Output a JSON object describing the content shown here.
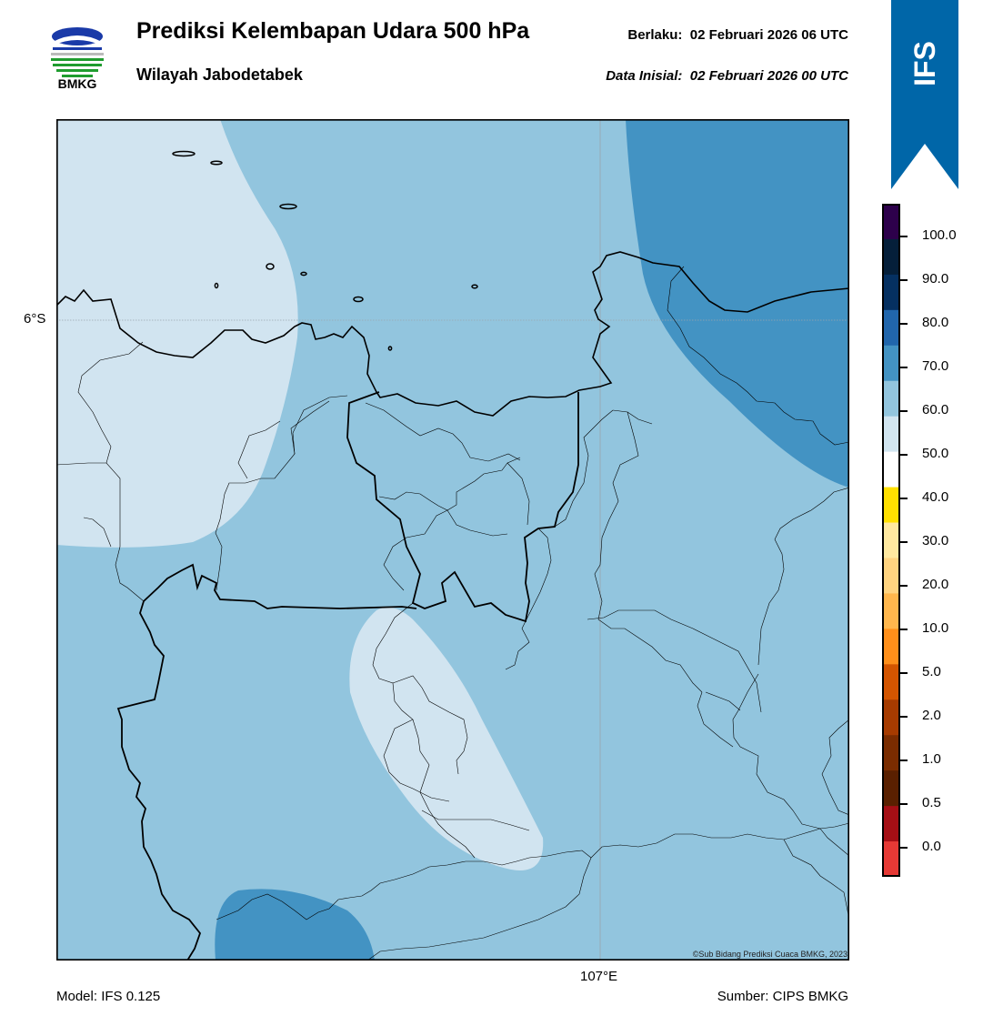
{
  "header": {
    "title": "Prediksi Kelembapan Udara 500 hPa",
    "subtitle": "Wilayah Jabodetabek",
    "valid_label": "Berlaku:",
    "valid_value": "02 Februari 2026 06 UTC",
    "initial_label": "Data Inisial:",
    "initial_value": "02 Februari 2026 00 UTC"
  },
  "logo": {
    "text": "BMKG"
  },
  "ribbon": {
    "text": "IFS",
    "color": "#0066a8"
  },
  "map": {
    "lat_label": "6°S",
    "lon_label": "107°E",
    "credit": "©Sub Bidang Prediksi Cuaca BMKG, 2023",
    "fill_colors": {
      "50-60": "#d1e4f0",
      "60-70": "#92c5de",
      "70-80": "#4393c3"
    }
  },
  "colorbar": {
    "ticks": [
      "100.0",
      "90.0",
      "80.0",
      "70.0",
      "60.0",
      "50.0",
      "40.0",
      "30.0",
      "20.0",
      "10.0",
      "5.0",
      "2.0",
      "1.0",
      "0.5",
      "0.0"
    ],
    "colors": [
      "#2d004b",
      "#051f3a",
      "#053061",
      "#2166ac",
      "#4393c3",
      "#92c5de",
      "#d1e5f0",
      "#ffffff",
      "#ffe000",
      "#ffe9a0",
      "#ffd480",
      "#ffb74d",
      "#ff8f1a",
      "#d45500",
      "#a63b00",
      "#7a2c00",
      "#5a2000",
      "#a50f15",
      "#e53935"
    ]
  },
  "footer": {
    "model": "Model: IFS 0.125",
    "source": "Sumber: CIPS BMKG"
  }
}
